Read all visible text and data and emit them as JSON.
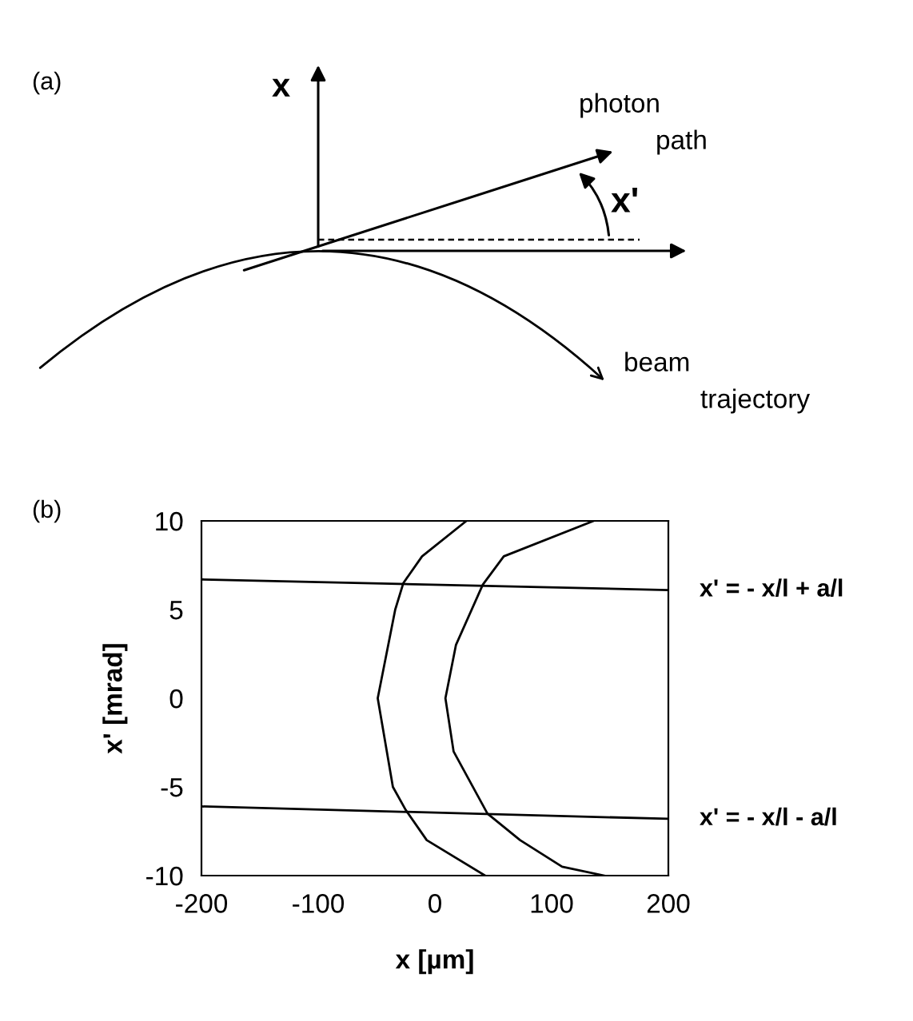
{
  "chart_data": [
    {
      "type": "other",
      "title": "(a)",
      "annotations": [
        "x",
        "photon path",
        "x'",
        "beam trajectory"
      ]
    },
    {
      "type": "line",
      "title": "(b)",
      "xlabel": "x [µm]",
      "ylabel": "x' [mrad]",
      "xlim": [
        -200,
        200
      ],
      "ylim": [
        -10,
        10
      ],
      "xticks": [
        -200,
        -100,
        0,
        100,
        200
      ],
      "yticks": [
        -10,
        -5,
        0,
        5,
        10
      ],
      "grid": false,
      "legend": false,
      "series": [
        {
          "color": "#000000",
          "x": [
            -200,
            200
          ],
          "values": [
            6.7,
            6.1
          ]
        },
        {
          "color": "#000000",
          "x": [
            -200,
            200
          ],
          "values": [
            -6.1,
            -6.8
          ]
        },
        {
          "color": "#000000",
          "x": [
            27,
            -11,
            -27,
            -34,
            -49,
            -36,
            -25,
            -7,
            43
          ],
          "values": [
            10,
            8,
            6.5,
            5,
            0,
            -5,
            -6.3,
            -8,
            -10
          ]
        },
        {
          "color": "#000000",
          "x": [
            136,
            59,
            41,
            18,
            9,
            16,
            45,
            73,
            109,
            145
          ],
          "values": [
            10,
            8,
            6.4,
            3,
            0,
            -3,
            -6.5,
            -8,
            -9.5,
            -10
          ]
        }
      ],
      "annotations": [
        {
          "text": "x' = - x/l + a/l",
          "x": 200,
          "y": 6.1
        },
        {
          "text": "x' = - x/l - a/l",
          "x": 200,
          "y": -6.8
        }
      ]
    }
  ]
}
